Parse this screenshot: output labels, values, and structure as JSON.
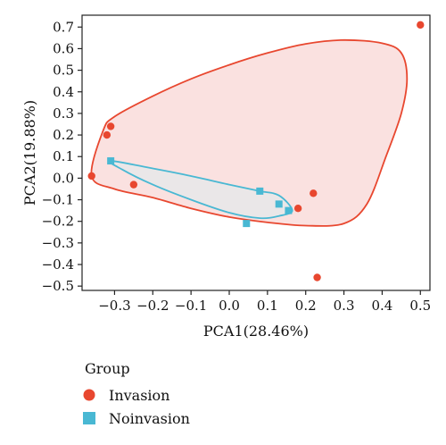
{
  "chart_data": {
    "type": "scatter",
    "title": "",
    "xlabel": "PCA1(28.46%)",
    "ylabel": "PCA2(19.88%)",
    "xlim": [
      -0.385,
      0.525
    ],
    "ylim": [
      -0.52,
      0.755
    ],
    "xticks": [
      -0.3,
      -0.2,
      -0.1,
      0.0,
      0.1,
      0.2,
      0.3,
      0.4,
      0.5
    ],
    "xtick_labels": [
      "−0.3",
      "−0.2",
      "−0.1",
      "0.0",
      "0.1",
      "0.2",
      "0.3",
      "0.4",
      "0.5"
    ],
    "yticks": [
      0.7,
      0.6,
      0.5,
      0.4,
      0.3,
      0.2,
      0.1,
      0.0,
      -0.1,
      -0.2,
      -0.3,
      -0.4,
      -0.5
    ],
    "ytick_labels": [
      "0.7",
      "0.6",
      "0.5",
      "0.4",
      "0.3",
      "0.2",
      "0.1",
      "0.0",
      "−0.1",
      "−0.2",
      "−0.3",
      "−0.4",
      "−0.5"
    ],
    "grid": false,
    "legend": {
      "title": "Group",
      "position": "bottom-left"
    },
    "series": [
      {
        "name": "Invasion",
        "marker": "circle",
        "color": "#E8472F",
        "fill": "#F9DCDB",
        "points": [
          {
            "x": 0.5,
            "y": 0.71
          },
          {
            "x": -0.31,
            "y": 0.24
          },
          {
            "x": -0.32,
            "y": 0.2
          },
          {
            "x": -0.36,
            "y": 0.01
          },
          {
            "x": -0.25,
            "y": -0.03
          },
          {
            "x": 0.22,
            "y": -0.07
          },
          {
            "x": 0.18,
            "y": -0.14
          },
          {
            "x": 0.23,
            "y": -0.46
          }
        ]
      },
      {
        "name": "Noinvasion",
        "marker": "square",
        "color": "#49B8D3",
        "fill": "#E6E7E9",
        "points": [
          {
            "x": -0.31,
            "y": 0.08
          },
          {
            "x": 0.08,
            "y": -0.06
          },
          {
            "x": 0.13,
            "y": -0.12
          },
          {
            "x": 0.155,
            "y": -0.15
          },
          {
            "x": 0.045,
            "y": -0.21
          }
        ]
      }
    ],
    "ellipses": [
      {
        "series": "Invasion",
        "path": [
          [
            -0.36,
            0.01
          ],
          [
            -0.33,
            0.22
          ],
          [
            -0.3,
            0.285
          ],
          [
            -0.2,
            0.38
          ],
          [
            -0.1,
            0.46
          ],
          [
            0.0,
            0.525
          ],
          [
            0.1,
            0.58
          ],
          [
            0.2,
            0.622
          ],
          [
            0.3,
            0.64
          ],
          [
            0.4,
            0.625
          ],
          [
            0.45,
            0.58
          ],
          [
            0.465,
            0.46
          ],
          [
            0.45,
            0.3
          ],
          [
            0.41,
            0.1
          ],
          [
            0.36,
            -0.12
          ],
          [
            0.3,
            -0.21
          ],
          [
            0.2,
            -0.22
          ],
          [
            0.1,
            -0.205
          ],
          [
            0.0,
            -0.18
          ],
          [
            -0.1,
            -0.14
          ],
          [
            -0.2,
            -0.09
          ],
          [
            -0.3,
            -0.05
          ],
          [
            -0.36,
            0.01
          ]
        ]
      },
      {
        "series": "Noinvasion",
        "path": [
          [
            -0.31,
            0.08
          ],
          [
            -0.2,
            0.045
          ],
          [
            -0.1,
            0.01
          ],
          [
            0.0,
            -0.03
          ],
          [
            0.08,
            -0.06
          ],
          [
            0.13,
            -0.08
          ],
          [
            0.165,
            -0.15
          ],
          [
            0.13,
            -0.175
          ],
          [
            0.08,
            -0.185
          ],
          [
            0.0,
            -0.16
          ],
          [
            -0.1,
            -0.1
          ],
          [
            -0.2,
            -0.03
          ],
          [
            -0.28,
            0.04
          ],
          [
            -0.31,
            0.08
          ]
        ]
      }
    ]
  }
}
